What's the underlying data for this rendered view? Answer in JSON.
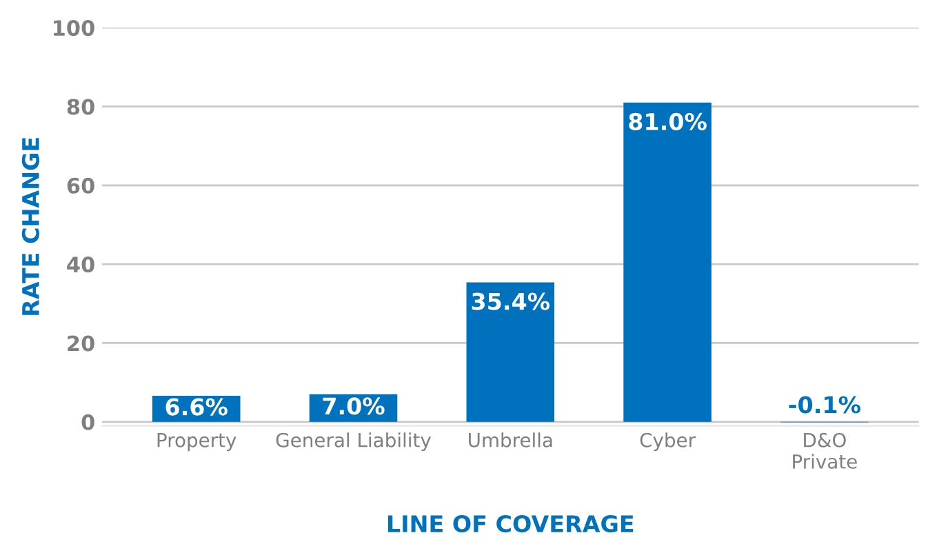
{
  "chart_data": {
    "type": "bar",
    "xlabel": "LINE OF COVERAGE",
    "ylabel": "RATE CHANGE",
    "categories": [
      "Property",
      "General Liability",
      "Umbrella",
      "Cyber",
      "D&O\nPrivate"
    ],
    "values": [
      6.6,
      7.0,
      35.4,
      81.0,
      -0.1
    ],
    "value_labels": [
      "6.6%",
      "7.0%",
      "35.4%",
      "81.0%",
      "-0.1%"
    ],
    "color": "#0071bc",
    "ylim": [
      -1,
      100
    ],
    "yticks": [
      0,
      20,
      40,
      60,
      80,
      100
    ],
    "grid": "y",
    "legend": false
  }
}
